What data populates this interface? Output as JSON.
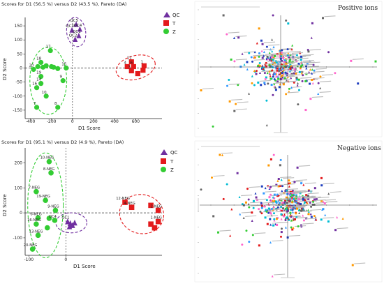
{
  "charts": {
    "top_left": {
      "title": "Scores for D1 (56.5 %) versus D2 (43.5 %), Pareto (DA)",
      "xlabel": "D1 Score",
      "ylabel": "D2 Score"
    },
    "bottom_left": {
      "title": "Scores for D1 (95.1 %) versus D2 (4.9 %), Pareto (DA)",
      "xlabel": "D1 Score",
      "ylabel": "D2 Score"
    },
    "top_right": {
      "label": "Positive ions"
    },
    "bottom_right": {
      "label": "Negative ions"
    }
  },
  "legend": [
    {
      "name": "QC",
      "marker": "triangle",
      "color": "#7030a0"
    },
    {
      "name": "T",
      "marker": "square",
      "color": "#e31a1c"
    },
    {
      "name": "Z",
      "marker": "circle",
      "color": "#33cc33"
    }
  ],
  "chart_data": [
    {
      "type": "scatter",
      "title": "Scores for D1 (56.5 %) versus D2 (43.5 %), Pareto (DA)",
      "xlabel": "D1 Score",
      "ylabel": "D2 Score",
      "xlim": [
        -450,
        850
      ],
      "ylim": [
        -180,
        180
      ],
      "xticks": [
        -400,
        -200,
        0,
        200,
        400,
        600
      ],
      "yticks": [
        -150,
        -100,
        -50,
        0,
        50,
        100,
        150
      ],
      "grid": false,
      "legend": "top-center",
      "series": [
        {
          "name": "QC",
          "points": [
            {
              "x": 35,
              "y": 155,
              "label": "QC5"
            },
            {
              "x": 70,
              "y": 138,
              "label": "QC4"
            },
            {
              "x": -5,
              "y": 135,
              "label": "QC3"
            },
            {
              "x": 60,
              "y": 115,
              "label": "QC1"
            },
            {
              "x": 25,
              "y": 102,
              "label": "QC2"
            }
          ]
        },
        {
          "name": "T",
          "points": [
            {
              "x": 560,
              "y": 22,
              "label": "11"
            },
            {
              "x": 520,
              "y": 5,
              "label": "4"
            },
            {
              "x": 580,
              "y": 5,
              "label": "6"
            },
            {
              "x": 680,
              "y": 8,
              "label": "1"
            },
            {
              "x": 560,
              "y": -10,
              "label": "3"
            },
            {
              "x": 670,
              "y": -8,
              "label": ""
            },
            {
              "x": 620,
              "y": -20,
              "label": ""
            }
          ]
        },
        {
          "name": "Z",
          "points": [
            {
              "x": -210,
              "y": 62,
              "label": "17"
            },
            {
              "x": -300,
              "y": 20,
              "label": "18"
            },
            {
              "x": -200,
              "y": 5,
              "label": ""
            },
            {
              "x": -370,
              "y": -5,
              "label": "20"
            },
            {
              "x": -330,
              "y": 5,
              "label": ""
            },
            {
              "x": -280,
              "y": 3,
              "label": ""
            },
            {
              "x": -250,
              "y": 8,
              "label": ""
            },
            {
              "x": -180,
              "y": 3,
              "label": ""
            },
            {
              "x": -140,
              "y": -2,
              "label": ""
            },
            {
              "x": -60,
              "y": 0,
              "label": "15"
            },
            {
              "x": -300,
              "y": -30,
              "label": "19"
            },
            {
              "x": -90,
              "y": -45,
              "label": "9"
            },
            {
              "x": -300,
              "y": -55,
              "label": "14"
            },
            {
              "x": -340,
              "y": -70,
              "label": "16"
            },
            {
              "x": -250,
              "y": -100,
              "label": "10"
            },
            {
              "x": -140,
              "y": -140,
              "label": "8"
            },
            {
              "x": -340,
              "y": -140,
              "label": "7"
            }
          ]
        }
      ]
    },
    {
      "type": "scatter",
      "title": "Scores for D1 (95.1 %) versus D2 (4.9 %), Pareto (DA)",
      "xlabel": "D1 Score",
      "ylabel": "D2 Score",
      "xlim": [
        -110,
        260
      ],
      "ylim": [
        -170,
        260
      ],
      "xticks": [
        -100,
        0
      ],
      "yticks": [
        -100,
        0,
        100,
        200
      ],
      "grid": false,
      "legend": "top-right",
      "series": [
        {
          "name": "QC",
          "points": [
            {
              "x": 5,
              "y": -35,
              "label": "QC1"
            },
            {
              "x": 12,
              "y": -42,
              "label": ""
            },
            {
              "x": 18,
              "y": -50,
              "label": ""
            },
            {
              "x": 24,
              "y": -40,
              "label": ""
            },
            {
              "x": 10,
              "y": -55,
              "label": ""
            }
          ]
        },
        {
          "name": "T",
          "points": [
            {
              "x": 160,
              "y": 42,
              "label": "12-NEG"
            },
            {
              "x": 178,
              "y": 22,
              "label": "4-NEG"
            },
            {
              "x": 230,
              "y": 30,
              "label": ""
            },
            {
              "x": 250,
              "y": 10,
              "label": "2-NEG"
            },
            {
              "x": 250,
              "y": -35,
              "label": "1-NEG"
            },
            {
              "x": 240,
              "y": -60,
              "label": ""
            },
            {
              "x": 230,
              "y": -45,
              "label": ""
            }
          ]
        },
        {
          "name": "Z",
          "points": [
            {
              "x": -45,
              "y": 205,
              "label": "10-NEG"
            },
            {
              "x": -40,
              "y": 160,
              "label": "8-NEG"
            },
            {
              "x": -80,
              "y": 85,
              "label": "7-NEG"
            },
            {
              "x": -55,
              "y": 50,
              "label": "19-NEG"
            },
            {
              "x": -28,
              "y": 10,
              "label": "9-NEG"
            },
            {
              "x": -75,
              "y": -20,
              "label": "6-NEG"
            },
            {
              "x": -45,
              "y": -22,
              "label": ""
            },
            {
              "x": -30,
              "y": -30,
              "label": "QC4"
            },
            {
              "x": -80,
              "y": -45,
              "label": "16-NEG"
            },
            {
              "x": -50,
              "y": -60,
              "label": ""
            },
            {
              "x": -75,
              "y": -90,
              "label": "13-NEG"
            },
            {
              "x": -90,
              "y": -145,
              "label": "20-NEG"
            }
          ]
        }
      ]
    }
  ]
}
